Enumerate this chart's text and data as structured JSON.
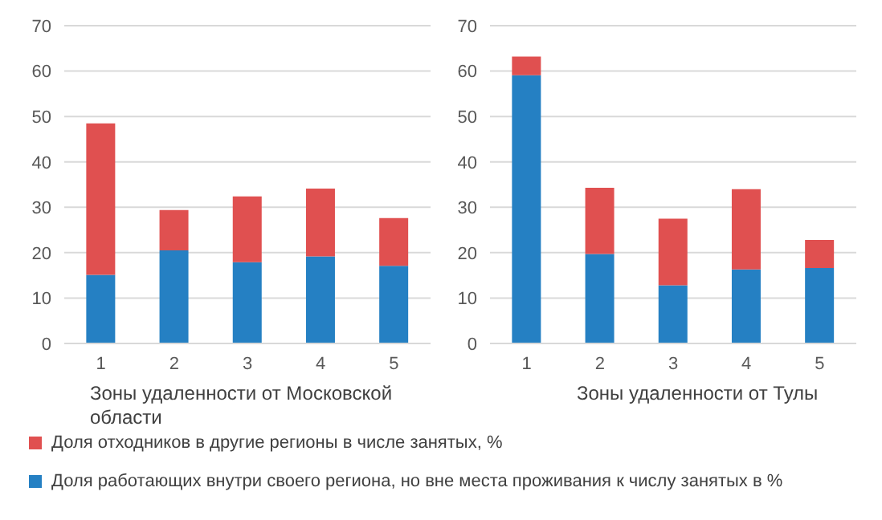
{
  "chart_data": [
    {
      "type": "bar",
      "stacked": true,
      "xlabel": "Зоны удаленности от Московской области",
      "categories": [
        "1",
        "2",
        "3",
        "4",
        "5"
      ],
      "ylim": [
        0,
        70
      ],
      "yticks": [
        0,
        10,
        20,
        30,
        40,
        50,
        60,
        70
      ],
      "grid": "y",
      "legend": "bottom",
      "series": [
        {
          "name": "Доля работающих внутри своего региона, но вне места проживания к числу занятых в %",
          "color": "#2580c3",
          "values": [
            15.1,
            20.5,
            17.9,
            19.2,
            17.1
          ]
        },
        {
          "name": "Доля отходников в другие регионы в числе занятых, %",
          "color": "#e05050",
          "values": [
            33.4,
            8.9,
            14.5,
            14.9,
            10.5
          ]
        }
      ]
    },
    {
      "type": "bar",
      "stacked": true,
      "xlabel": "Зоны удаленности от Тулы",
      "categories": [
        "1",
        "2",
        "3",
        "4",
        "5"
      ],
      "ylim": [
        0,
        70
      ],
      "yticks": [
        0,
        10,
        20,
        30,
        40,
        50,
        60,
        70
      ],
      "grid": "y",
      "series": [
        {
          "color": "#2580c3",
          "values": [
            59.1,
            19.7,
            12.8,
            16.3,
            16.6
          ]
        },
        {
          "color": "#e05050",
          "values": [
            4.1,
            14.6,
            14.7,
            17.7,
            6.2
          ]
        }
      ]
    }
  ]
}
